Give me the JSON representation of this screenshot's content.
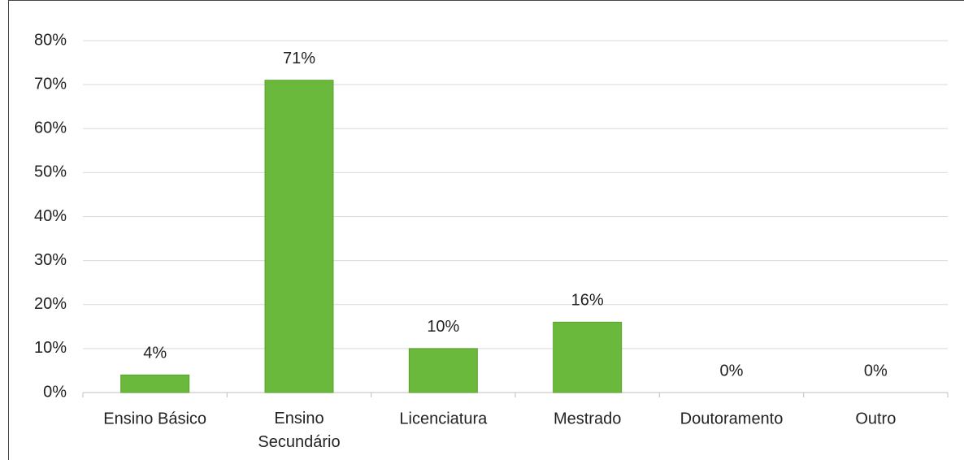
{
  "chart_data": {
    "type": "bar",
    "categories": [
      "Ensino Básico",
      "Ensino Secundário",
      "Licenciatura",
      "Mestrado",
      "Doutoramento",
      "Outro"
    ],
    "values": [
      4,
      71,
      10,
      16,
      0,
      0
    ],
    "value_labels": [
      "4%",
      "71%",
      "10%",
      "16%",
      "0%",
      "0%"
    ],
    "color": "#6ab93c",
    "ylim": [
      0,
      80
    ],
    "yticks": [
      {
        "value": 0,
        "label": "0%"
      },
      {
        "value": 10,
        "label": "10%"
      },
      {
        "value": 20,
        "label": "20%"
      },
      {
        "value": 30,
        "label": "30%"
      },
      {
        "value": 40,
        "label": "40%"
      },
      {
        "value": 50,
        "label": "50%"
      },
      {
        "value": 60,
        "label": "60%"
      },
      {
        "value": 70,
        "label": "70%"
      },
      {
        "value": 80,
        "label": "80%"
      }
    ],
    "grid": true
  }
}
